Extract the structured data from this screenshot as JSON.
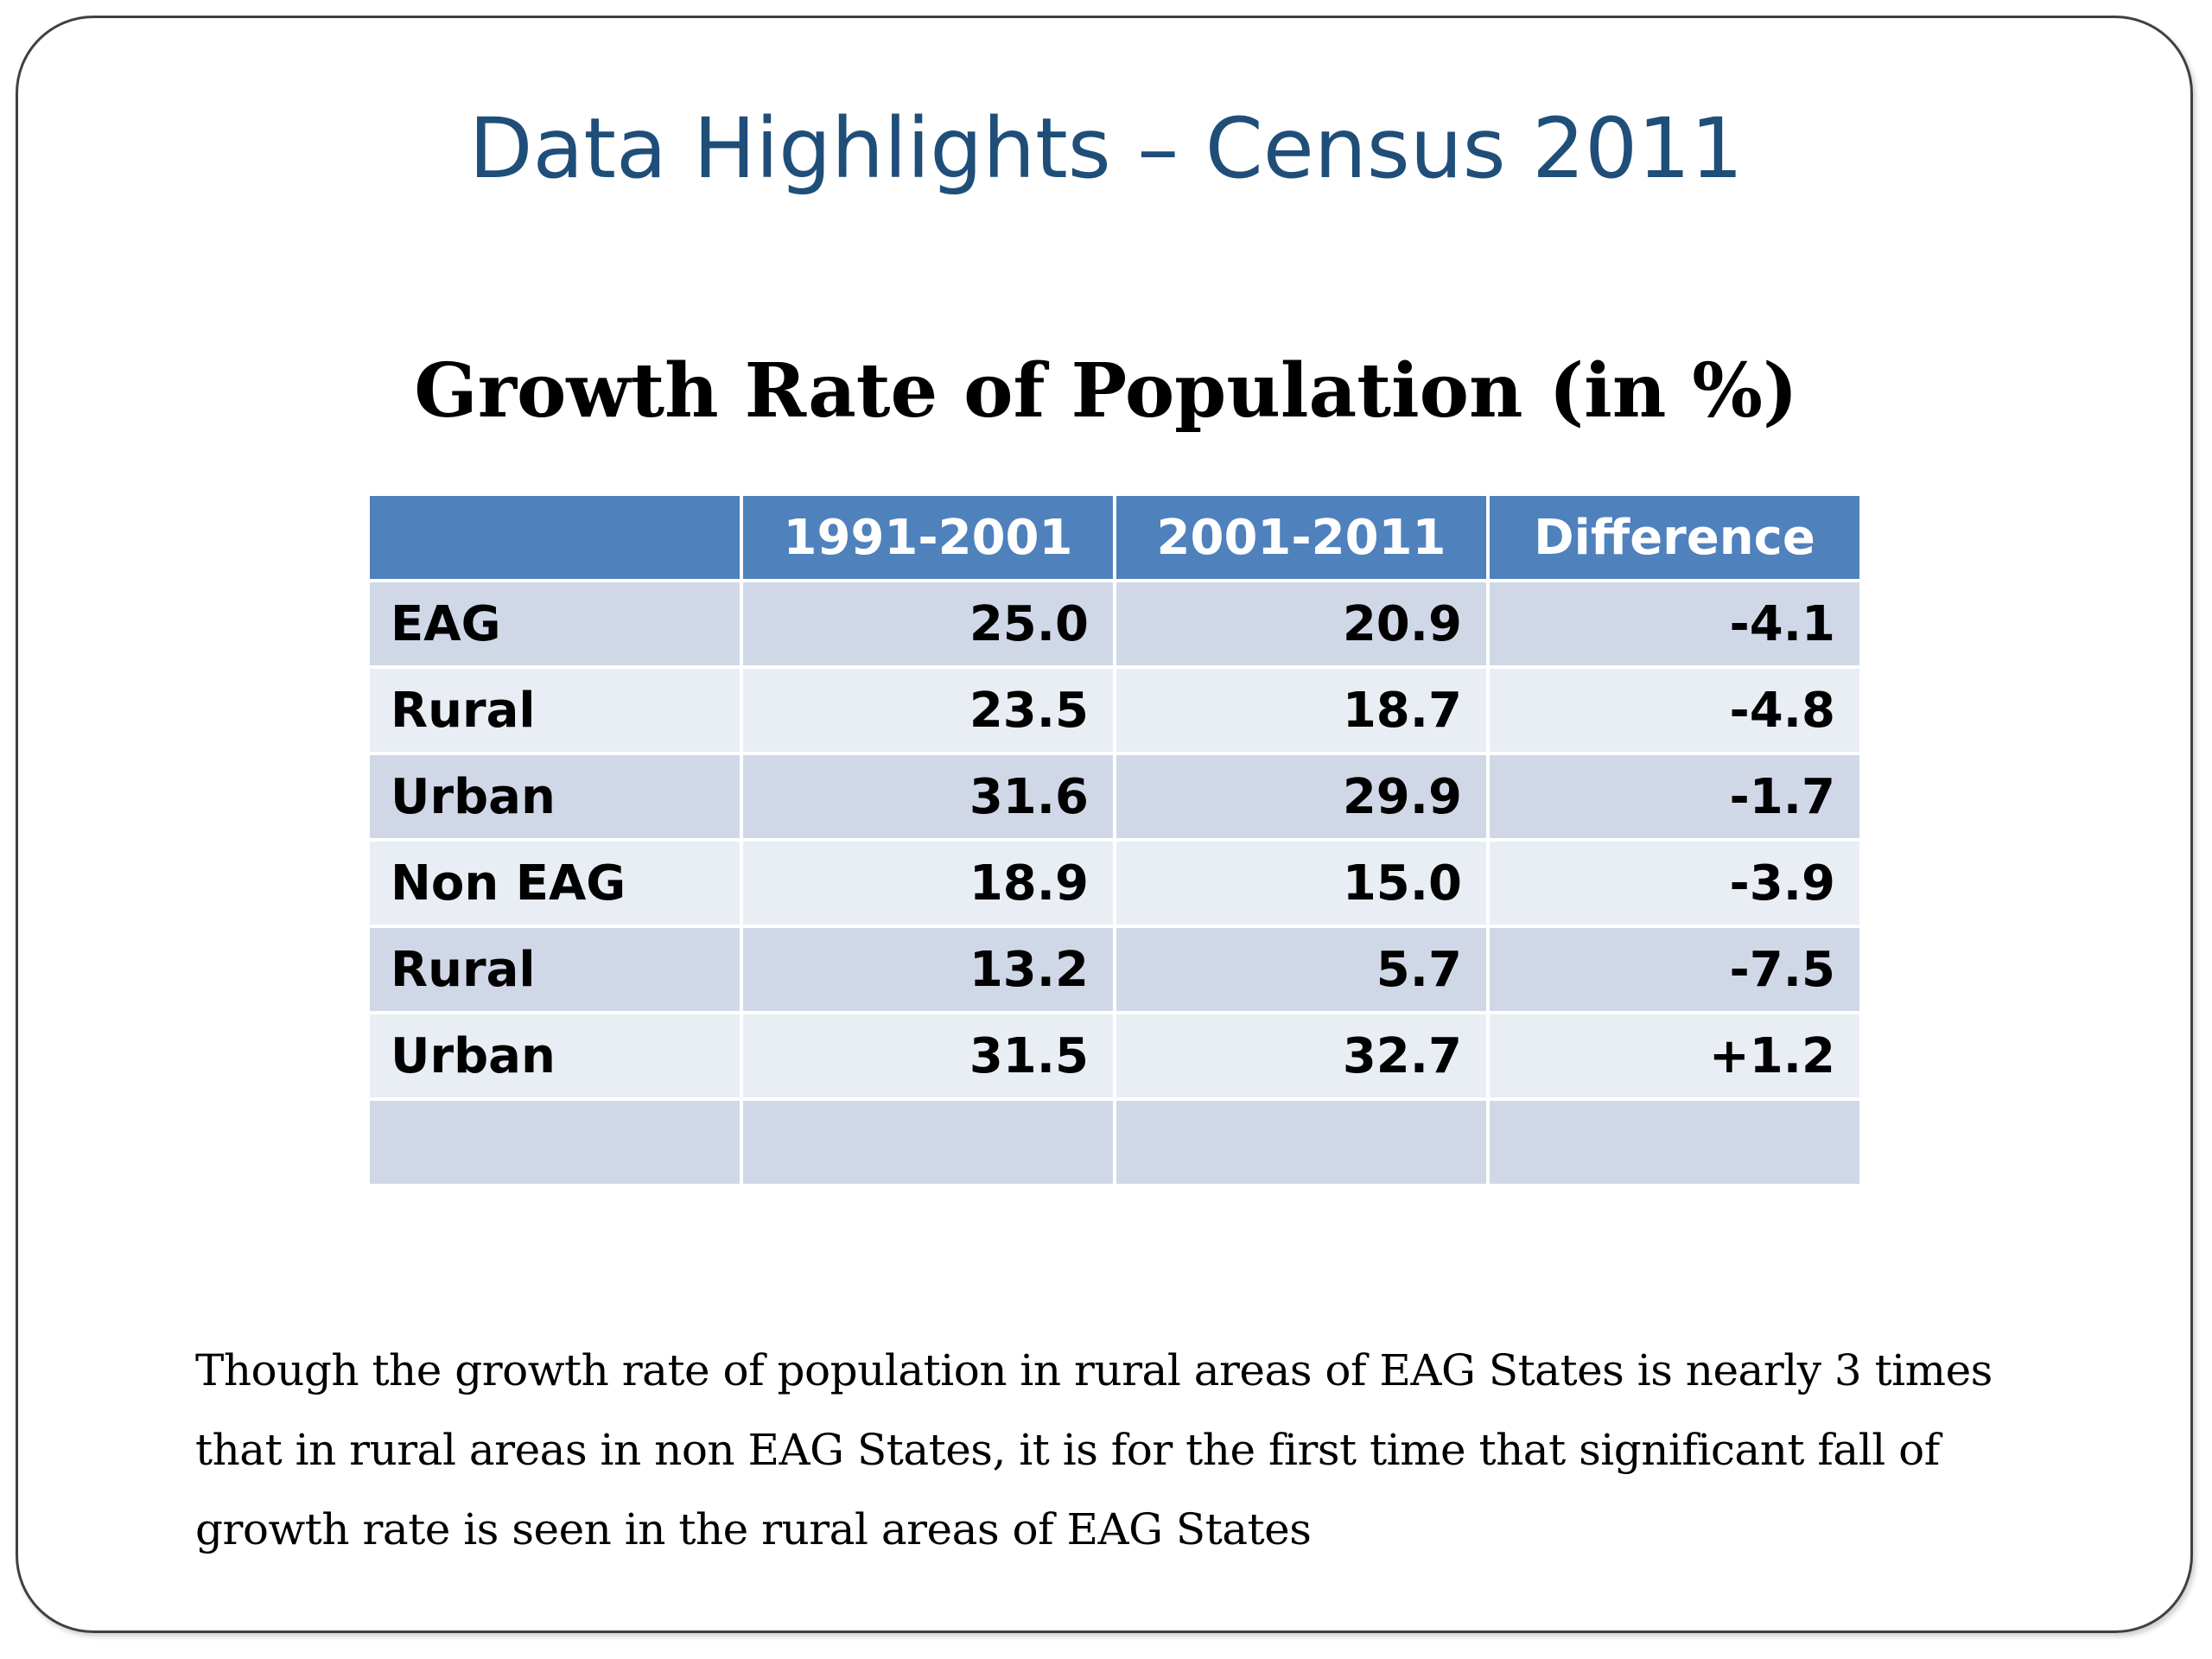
{
  "slide": {
    "title": "Data Highlights – Census 2011",
    "subtitle": "Growth Rate of Population (in %)",
    "table": {
      "headers": [
        "",
        "1991-2001",
        "2001-2011",
        "Difference"
      ],
      "rows": [
        {
          "label": "EAG",
          "p1": "25.0",
          "p2": "20.9",
          "diff": "-4.1"
        },
        {
          "label": "Rural",
          "p1": "23.5",
          "p2": "18.7",
          "diff": "-4.8"
        },
        {
          "label": "Urban",
          "p1": "31.6",
          "p2": "29.9",
          "diff": "-1.7"
        },
        {
          "label": "Non EAG",
          "p1": "18.9",
          "p2": "15.0",
          "diff": "-3.9"
        },
        {
          "label": "Rural",
          "p1": "13.2",
          "p2": "5.7",
          "diff": "-7.5"
        },
        {
          "label": "Urban",
          "p1": "31.5",
          "p2": "32.7",
          "diff": "+1.2"
        },
        {
          "label": "",
          "p1": "",
          "p2": "",
          "diff": ""
        }
      ]
    },
    "note": "Though the growth rate of population in rural areas of EAG States is nearly 3 times that in rural areas in non EAG States, it is for the first time that significant fall of growth rate is seen in the rural areas of EAG States"
  },
  "colors": {
    "title": "#1f4e79",
    "header_fill": "#4f81bd",
    "row_dark": "#d0d8e8",
    "row_light": "#e9edf4"
  }
}
